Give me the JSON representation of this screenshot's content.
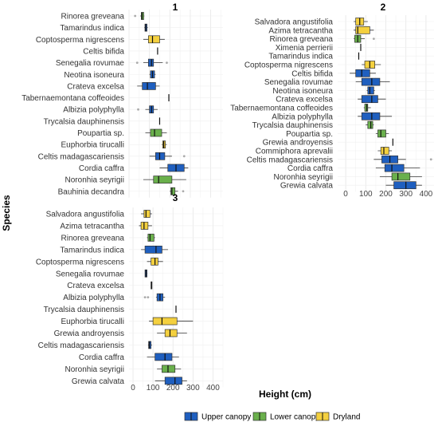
{
  "chart_data": {
    "type": "boxplot",
    "xlabel": "Height (cm)",
    "ylabel": "Species",
    "colors": {
      "Upper canopy": "#1f5fbf",
      "Lower canopy": "#6ab04c",
      "Dryland": "#f4d03f"
    },
    "legend": {
      "position": "bottom",
      "items": [
        "Upper canopy",
        "Lower canopy",
        "Dryland"
      ]
    },
    "grid": true,
    "panels": [
      {
        "title": "1",
        "xlim": [
          0,
          460
        ],
        "ticks": [],
        "species": [
          {
            "name": "Rinorea greveana",
            "group": "Lower canopy",
            "min": 55,
            "q1": 60,
            "median": 64,
            "q3": 72,
            "max": 75,
            "outliers": [
              30
            ]
          },
          {
            "name": "Tamarindus indica",
            "group": "Upper canopy",
            "min": 75,
            "q1": 78,
            "median": 82,
            "q3": 88,
            "max": 92,
            "outliers": []
          },
          {
            "name": "Coptosperma nigrescens",
            "group": "Dryland",
            "min": 70,
            "q1": 95,
            "median": 115,
            "q3": 150,
            "max": 175,
            "outliers": []
          },
          {
            "name": "Celtis bifida",
            "group": "Upper canopy",
            "min": 140,
            "q1": 140,
            "median": 140,
            "q3": 140,
            "max": 140,
            "outliers": []
          },
          {
            "name": "Senegalia rovumae",
            "group": "Upper canopy",
            "min": 70,
            "q1": 95,
            "median": 110,
            "q3": 120,
            "max": 165,
            "outliers": [
              40,
              185
            ]
          },
          {
            "name": "Neotina isoneura",
            "group": "Upper canopy",
            "min": 100,
            "q1": 105,
            "median": 115,
            "q3": 125,
            "max": 130,
            "outliers": []
          },
          {
            "name": "Crateva excelsa",
            "group": "Upper canopy",
            "min": 40,
            "q1": 65,
            "median": 90,
            "q3": 130,
            "max": 150,
            "outliers": []
          },
          {
            "name": "Tabernaemontana coffeoides",
            "group": "Upper canopy",
            "min": 195,
            "q1": 195,
            "median": 195,
            "q3": 195,
            "max": 195,
            "outliers": []
          },
          {
            "name": "Albizia polyphylla",
            "group": "Upper canopy",
            "min": 80,
            "q1": 100,
            "median": 110,
            "q3": 120,
            "max": 140,
            "outliers": [
              45
            ]
          },
          {
            "name": "Trycalsia dauphinensis",
            "group": "Upper canopy",
            "min": 150,
            "q1": 150,
            "median": 150,
            "q3": 150,
            "max": 150,
            "outliers": []
          },
          {
            "name": "Poupartia sp.",
            "group": "Lower canopy",
            "min": 80,
            "q1": 105,
            "median": 125,
            "q3": 160,
            "max": 185,
            "outliers": []
          },
          {
            "name": "Euphorbia tirucalli",
            "group": "Dryland",
            "min": 160,
            "q1": 165,
            "median": 170,
            "q3": 178,
            "max": 185,
            "outliers": []
          },
          {
            "name": "Celtis madagascariensis",
            "group": "Upper canopy",
            "min": 100,
            "q1": 130,
            "median": 150,
            "q3": 175,
            "max": 210,
            "outliers": [
              270
            ]
          },
          {
            "name": "Cordia caffra",
            "group": "Upper canopy",
            "min": 150,
            "q1": 190,
            "median": 230,
            "q3": 270,
            "max": 290,
            "outliers": []
          },
          {
            "name": "Noronhia seyrigii",
            "group": "Lower canopy",
            "min": 70,
            "q1": 120,
            "median": 145,
            "q3": 210,
            "max": 280,
            "outliers": []
          },
          {
            "name": "Bauhinia decandra",
            "group": "Lower canopy",
            "min": 200,
            "q1": 205,
            "median": 210,
            "q3": 225,
            "max": 240,
            "outliers": [
              265
            ]
          }
        ]
      },
      {
        "title": "2",
        "xlim": [
          -40,
          440
        ],
        "ticks": [
          0,
          100,
          200,
          300,
          400
        ],
        "species": [
          {
            "name": "Salvadora angustifolia",
            "group": "Dryland",
            "min": 40,
            "q1": 50,
            "median": 70,
            "q3": 90,
            "max": 110,
            "outliers": []
          },
          {
            "name": "Azima tetracantha",
            "group": "Dryland",
            "min": 40,
            "q1": 50,
            "median": 60,
            "q3": 120,
            "max": 140,
            "outliers": []
          },
          {
            "name": "Rinorea greveana",
            "group": "Lower canopy",
            "min": 40,
            "q1": 45,
            "median": 60,
            "q3": 75,
            "max": 95,
            "outliers": [
              140
            ]
          },
          {
            "name": "Ximenia perrierii",
            "group": "Upper canopy",
            "min": 75,
            "q1": 75,
            "median": 75,
            "q3": 75,
            "max": 75,
            "outliers": []
          },
          {
            "name": "Tamarindus indica",
            "group": "Upper canopy",
            "min": 65,
            "q1": 65,
            "median": 65,
            "q3": 65,
            "max": 65,
            "outliers": []
          },
          {
            "name": "Coptosperma nigrescens",
            "group": "Dryland",
            "min": 80,
            "q1": 95,
            "median": 120,
            "q3": 145,
            "max": 175,
            "outliers": []
          },
          {
            "name": "Celtis bifida",
            "group": "Upper canopy",
            "min": 20,
            "q1": 50,
            "median": 80,
            "q3": 120,
            "max": 150,
            "outliers": []
          },
          {
            "name": "Senegalia rovumae",
            "group": "Upper canopy",
            "min": 50,
            "q1": 80,
            "median": 130,
            "q3": 170,
            "max": 220,
            "outliers": []
          },
          {
            "name": "Neotina isoneura",
            "group": "Upper canopy",
            "min": 105,
            "q1": 110,
            "median": 120,
            "q3": 140,
            "max": 145,
            "outliers": []
          },
          {
            "name": "Crateva excelsa",
            "group": "Upper canopy",
            "min": 60,
            "q1": 80,
            "median": 130,
            "q3": 160,
            "max": 200,
            "outliers": []
          },
          {
            "name": "Tabernaemontana coffeoides",
            "group": "Lower canopy",
            "min": 90,
            "q1": 95,
            "median": 105,
            "q3": 110,
            "max": 125,
            "outliers": []
          },
          {
            "name": "Albizia polyphylla",
            "group": "Upper canopy",
            "min": 60,
            "q1": 80,
            "median": 130,
            "q3": 170,
            "max": 230,
            "outliers": []
          },
          {
            "name": "Trycalsia dauphinensis",
            "group": "Lower canopy",
            "min": 100,
            "q1": 110,
            "median": 125,
            "q3": 135,
            "max": 140,
            "outliers": []
          },
          {
            "name": "Poupartia sp.",
            "group": "Lower canopy",
            "min": 150,
            "q1": 160,
            "median": 175,
            "q3": 200,
            "max": 215,
            "outliers": []
          },
          {
            "name": "Grewia androyensis",
            "group": "Upper canopy",
            "min": 235,
            "q1": 235,
            "median": 235,
            "q3": 235,
            "max": 235,
            "outliers": []
          },
          {
            "name": "Commiphora aprevalii",
            "group": "Dryland",
            "min": 160,
            "q1": 175,
            "median": 190,
            "q3": 215,
            "max": 230,
            "outliers": []
          },
          {
            "name": "Celtis madagascariensis",
            "group": "Upper canopy",
            "min": 140,
            "q1": 180,
            "median": 220,
            "q3": 260,
            "max": 300,
            "outliers": [
              425
            ]
          },
          {
            "name": "Cordia caffra",
            "group": "Upper canopy",
            "min": 150,
            "q1": 195,
            "median": 230,
            "q3": 290,
            "max": 370,
            "outliers": []
          },
          {
            "name": "Noronhia seyrigii",
            "group": "Lower canopy",
            "min": 170,
            "q1": 230,
            "median": 260,
            "q3": 320,
            "max": 380,
            "outliers": []
          },
          {
            "name": "Grewia calvata",
            "group": "Upper canopy",
            "min": 200,
            "q1": 240,
            "median": 300,
            "q3": 350,
            "max": 380,
            "outliers": []
          }
        ]
      },
      {
        "title": "3",
        "xlim": [
          -20,
          450
        ],
        "ticks": [
          0,
          100,
          200,
          300,
          400
        ],
        "species": [
          {
            "name": "Salvadora angustifolia",
            "group": "Dryland",
            "min": 40,
            "q1": 55,
            "median": 65,
            "q3": 85,
            "max": 95,
            "outliers": []
          },
          {
            "name": "Azima tetracantha",
            "group": "Dryland",
            "min": 30,
            "q1": 40,
            "median": 55,
            "q3": 75,
            "max": 95,
            "outliers": []
          },
          {
            "name": "Rinorea greveana",
            "group": "Lower canopy",
            "min": 70,
            "q1": 75,
            "median": 85,
            "q3": 105,
            "max": 110,
            "outliers": []
          },
          {
            "name": "Tamarindus indica",
            "group": "Upper canopy",
            "min": 40,
            "q1": 60,
            "median": 115,
            "q3": 145,
            "max": 175,
            "outliers": []
          },
          {
            "name": "Coptosperma nigrescens",
            "group": "Dryland",
            "min": 70,
            "q1": 90,
            "median": 110,
            "q3": 125,
            "max": 150,
            "outliers": []
          },
          {
            "name": "Senegalia rovumae",
            "group": "Upper canopy",
            "min": 60,
            "q1": 60,
            "median": 65,
            "q3": 70,
            "max": 72,
            "outliers": []
          },
          {
            "name": "Crateva excelsa",
            "group": "Upper canopy",
            "min": 90,
            "q1": 90,
            "median": 92,
            "q3": 95,
            "max": 95,
            "outliers": []
          },
          {
            "name": "Albizia polyphylla",
            "group": "Upper canopy",
            "min": 115,
            "q1": 120,
            "median": 135,
            "q3": 150,
            "max": 160,
            "outliers": [
              60,
              75
            ]
          },
          {
            "name": "Trycalsia dauphinensis",
            "group": "Upper canopy",
            "min": 215,
            "q1": 215,
            "median": 215,
            "q3": 215,
            "max": 215,
            "outliers": []
          },
          {
            "name": "Euphorbia tirucalli",
            "group": "Dryland",
            "min": 80,
            "q1": 100,
            "median": 145,
            "q3": 220,
            "max": 300,
            "outliers": []
          },
          {
            "name": "Grewia androyensis",
            "group": "Dryland",
            "min": 120,
            "q1": 160,
            "median": 185,
            "q3": 220,
            "max": 270,
            "outliers": []
          },
          {
            "name": "Celtis madagascariensis",
            "group": "Upper canopy",
            "min": 75,
            "q1": 78,
            "median": 82,
            "q3": 90,
            "max": 95,
            "outliers": []
          },
          {
            "name": "Cordia caffra",
            "group": "Upper canopy",
            "min": 70,
            "q1": 110,
            "median": 160,
            "q3": 195,
            "max": 230,
            "outliers": []
          },
          {
            "name": "Noronhia seyrigii",
            "group": "Lower canopy",
            "min": 120,
            "q1": 145,
            "median": 175,
            "q3": 210,
            "max": 240,
            "outliers": []
          },
          {
            "name": "Grewia calvata",
            "group": "Upper canopy",
            "min": 110,
            "q1": 160,
            "median": 210,
            "q3": 245,
            "max": 270,
            "outliers": []
          }
        ]
      }
    ]
  }
}
